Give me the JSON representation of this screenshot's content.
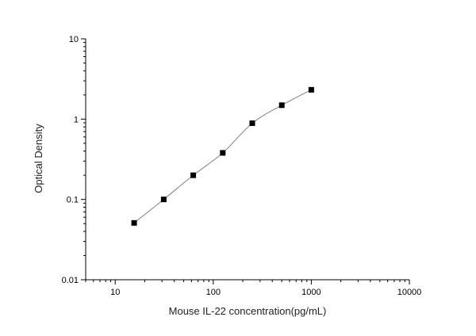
{
  "chart_data": {
    "type": "scatter",
    "xlabel": "Mouse IL-22 concentration(pg/mL)",
    "ylabel": "Optical Density",
    "x_scale": "log",
    "y_scale": "log",
    "xlim": [
      5,
      10000
    ],
    "ylim": [
      0.01,
      10
    ],
    "x_ticks": [
      "10",
      "100",
      "1000",
      "10000"
    ],
    "y_ticks": [
      "0.01",
      "0.1",
      "1",
      "10"
    ],
    "grid": false,
    "legend": "none",
    "marker_color": "#000000",
    "curve_color": "#808080",
    "series": [
      {
        "x": [
          15.6,
          31.25,
          62.5,
          125,
          250,
          500,
          1000
        ],
        "y": [
          0.051,
          0.1,
          0.2,
          0.38,
          0.89,
          1.49,
          2.32
        ]
      }
    ],
    "fit_curve": true
  }
}
